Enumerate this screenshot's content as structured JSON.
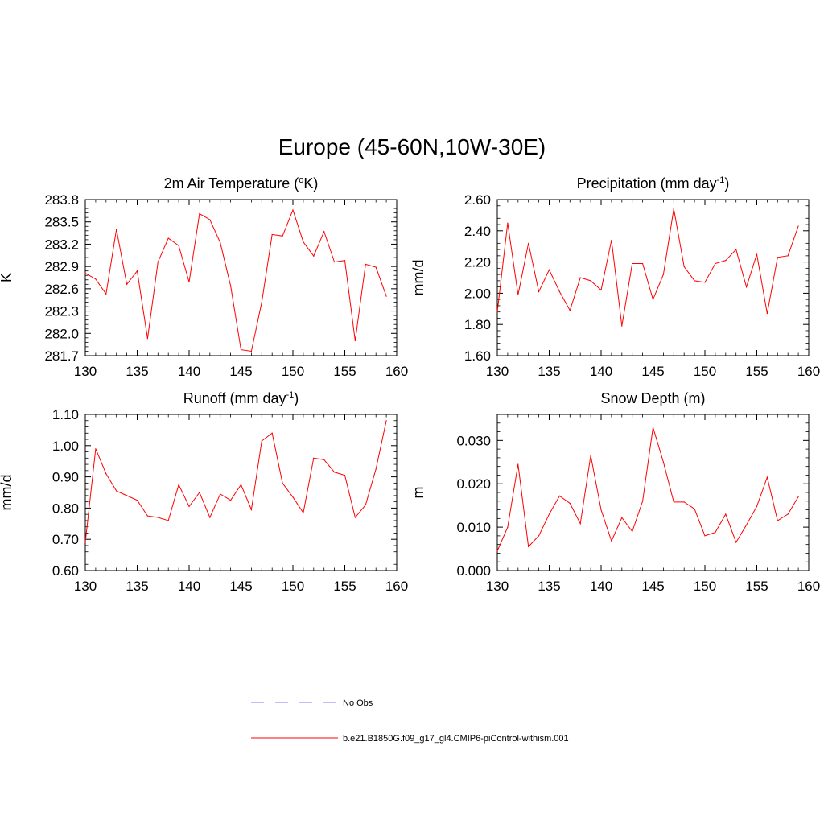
{
  "figure": {
    "title": "Europe (45-60N,10W-30E)"
  },
  "legend": {
    "entries": [
      {
        "label": "No Obs",
        "color": "#9999ff",
        "dash": true
      },
      {
        "label": "b.e21.B1850G.f09_g17_gl4.CMIP6-piControl-withism.001",
        "color": "#ff0000",
        "dash": false
      }
    ]
  },
  "chart_data": [
    {
      "id": "temp",
      "type": "line",
      "title_parts": [
        "2m Air Temperature (",
        "o",
        "K)"
      ],
      "title_sup_index": 1,
      "xlabel": "",
      "ylabel": "K",
      "xlim": [
        130,
        160
      ],
      "ylim": [
        281.7,
        283.8
      ],
      "xticks": [
        130,
        135,
        140,
        145,
        150,
        155,
        160
      ],
      "xtick_labels": [
        "130",
        "135",
        "140",
        "145",
        "150",
        "155",
        "160"
      ],
      "yticks": [
        281.7,
        282.0,
        282.3,
        282.6,
        282.9,
        283.2,
        283.5,
        283.8
      ],
      "ytick_labels": [
        "281.7",
        "282.0",
        "282.3",
        "282.6",
        "282.9",
        "283.2",
        "283.5",
        "283.8"
      ],
      "series": [
        {
          "color": "#ff0000",
          "x": [
            130,
            131,
            132,
            133,
            134,
            135,
            136,
            137,
            138,
            139,
            140,
            141,
            142,
            143,
            144,
            145,
            146,
            147,
            148,
            149,
            150,
            151,
            152,
            153,
            154,
            155,
            156,
            157,
            158,
            159
          ],
          "y": [
            282.81,
            282.73,
            282.53,
            283.4,
            282.66,
            282.84,
            281.93,
            282.96,
            283.28,
            283.18,
            282.69,
            283.61,
            283.53,
            283.22,
            282.64,
            281.78,
            281.76,
            282.42,
            283.33,
            283.31,
            283.66,
            283.23,
            283.04,
            283.37,
            282.96,
            282.98,
            281.9,
            282.93,
            282.89,
            282.5
          ]
        }
      ]
    },
    {
      "id": "precip",
      "type": "line",
      "title_parts": [
        "Precipitation (mm day",
        "-1",
        ")"
      ],
      "title_sup_index": 1,
      "xlabel": "",
      "ylabel": "mm/d",
      "xlim": [
        130,
        160
      ],
      "ylim": [
        1.6,
        2.6
      ],
      "xticks": [
        130,
        135,
        140,
        145,
        150,
        155,
        160
      ],
      "xtick_labels": [
        "130",
        "135",
        "140",
        "145",
        "150",
        "155",
        "160"
      ],
      "yticks": [
        1.6,
        1.8,
        2.0,
        2.2,
        2.4,
        2.6
      ],
      "ytick_labels": [
        "1.60",
        "1.80",
        "2.00",
        "2.20",
        "2.40",
        "2.60"
      ],
      "series": [
        {
          "color": "#ff0000",
          "x": [
            130,
            131,
            132,
            133,
            134,
            135,
            136,
            137,
            138,
            139,
            140,
            141,
            142,
            143,
            144,
            145,
            146,
            147,
            148,
            149,
            150,
            151,
            152,
            153,
            154,
            155,
            156,
            157,
            158,
            159
          ],
          "y": [
            1.88,
            2.45,
            1.99,
            2.32,
            2.01,
            2.15,
            2.01,
            1.89,
            2.1,
            2.08,
            2.02,
            2.34,
            1.79,
            2.19,
            2.19,
            1.96,
            2.12,
            2.54,
            2.17,
            2.08,
            2.07,
            2.19,
            2.21,
            2.28,
            2.04,
            2.25,
            1.87,
            2.23,
            2.24,
            2.43
          ]
        }
      ]
    },
    {
      "id": "runoff",
      "type": "line",
      "title_parts": [
        "Runoff (mm day",
        "-1",
        ")"
      ],
      "title_sup_index": 1,
      "xlabel": "",
      "ylabel": "mm/d",
      "xlim": [
        130,
        160
      ],
      "ylim": [
        0.6,
        1.1
      ],
      "xticks": [
        130,
        135,
        140,
        145,
        150,
        155,
        160
      ],
      "xtick_labels": [
        "130",
        "135",
        "140",
        "145",
        "150",
        "155",
        "160"
      ],
      "yticks": [
        0.6,
        0.7,
        0.8,
        0.9,
        1.0,
        1.1
      ],
      "ytick_labels": [
        "0.60",
        "0.70",
        "0.80",
        "0.90",
        "1.00",
        "1.10"
      ],
      "series": [
        {
          "color": "#ff0000",
          "x": [
            130,
            131,
            132,
            133,
            134,
            135,
            136,
            137,
            138,
            139,
            140,
            141,
            142,
            143,
            144,
            145,
            146,
            147,
            148,
            149,
            150,
            151,
            152,
            153,
            154,
            155,
            156,
            157,
            158,
            159
          ],
          "y": [
            0.69,
            0.99,
            0.91,
            0.855,
            0.84,
            0.825,
            0.775,
            0.77,
            0.76,
            0.875,
            0.805,
            0.85,
            0.77,
            0.845,
            0.825,
            0.875,
            0.795,
            1.015,
            1.04,
            0.88,
            0.835,
            0.785,
            0.96,
            0.955,
            0.915,
            0.905,
            0.77,
            0.81,
            0.925,
            1.08
          ]
        }
      ]
    },
    {
      "id": "snow",
      "type": "line",
      "title_parts": [
        "Snow Depth (m)"
      ],
      "title_sup_index": -1,
      "xlabel": "",
      "ylabel": "m",
      "xlim": [
        130,
        160
      ],
      "ylim": [
        0.0,
        0.036
      ],
      "xticks": [
        130,
        135,
        140,
        145,
        150,
        155,
        160
      ],
      "xtick_labels": [
        "130",
        "135",
        "140",
        "145",
        "150",
        "155",
        "160"
      ],
      "yticks": [
        0.0,
        0.01,
        0.02,
        0.03
      ],
      "ytick_labels": [
        "0.000",
        "0.010",
        "0.020",
        "0.030"
      ],
      "series": [
        {
          "color": "#ff0000",
          "x": [
            130,
            131,
            132,
            133,
            134,
            135,
            136,
            137,
            138,
            139,
            140,
            141,
            142,
            143,
            144,
            145,
            146,
            147,
            148,
            149,
            150,
            151,
            152,
            153,
            154,
            155,
            156,
            157,
            158,
            159
          ],
          "y": [
            0.0045,
            0.01,
            0.0245,
            0.0055,
            0.008,
            0.013,
            0.0172,
            0.0155,
            0.0108,
            0.0265,
            0.014,
            0.0068,
            0.0122,
            0.009,
            0.016,
            0.033,
            0.025,
            0.0158,
            0.0158,
            0.0142,
            0.008,
            0.0088,
            0.013,
            0.0065,
            0.0105,
            0.0148,
            0.0215,
            0.0115,
            0.013,
            0.017
          ]
        }
      ]
    }
  ]
}
